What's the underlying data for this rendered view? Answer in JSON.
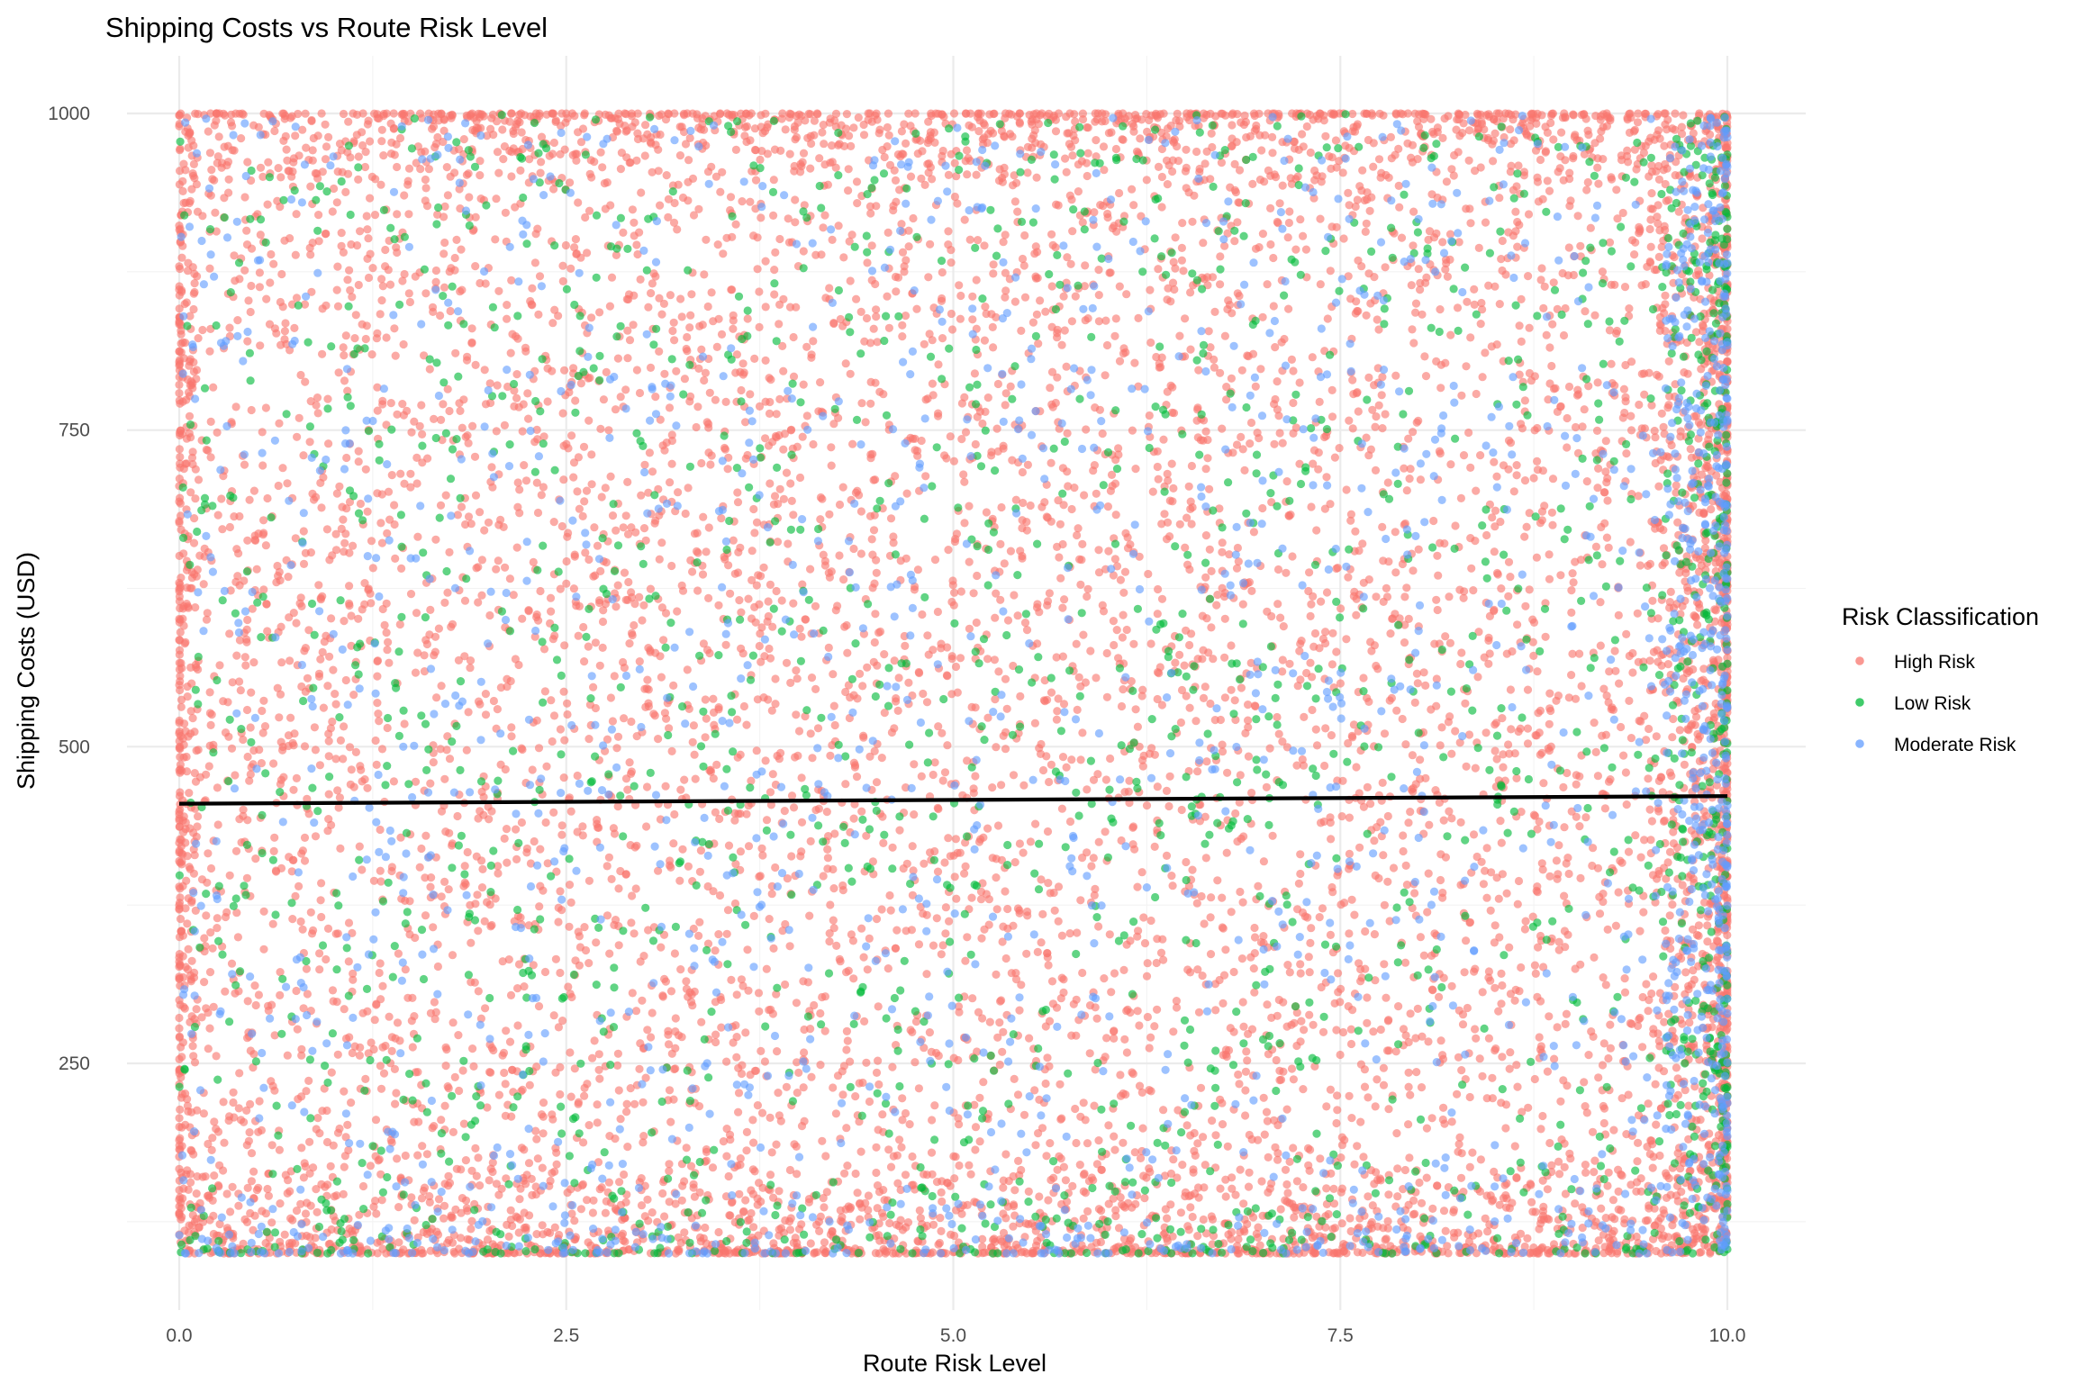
{
  "chart_data": {
    "type": "scatter",
    "title": "Shipping Costs vs Route Risk Level",
    "xlabel": "Route Risk Level",
    "ylabel": "Shipping Costs (USD)",
    "xlim": [
      0,
      10
    ],
    "ylim": [
      100,
      1000
    ],
    "x_ticks": [
      0,
      2.5,
      5,
      7.5,
      10
    ],
    "x_tick_labels": [
      "0.0",
      "2.5",
      "5.0",
      "7.5",
      "10.0"
    ],
    "y_ticks": [
      250,
      500,
      750,
      1000
    ],
    "y_tick_labels": [
      "250",
      "500",
      "750",
      "1000"
    ],
    "grid": true,
    "legend": {
      "title": "Risk Classification",
      "position": "right"
    },
    "series": [
      {
        "name": "High Risk",
        "color": "#F8766D",
        "share": 0.72,
        "distribution": "roughly uniform over x 0–10 and y 100–1000, dense bands near y=100, y=1000 and x=10"
      },
      {
        "name": "Low Risk",
        "color": "#00BA38",
        "share": 0.14,
        "distribution": "scattered over full range"
      },
      {
        "name": "Moderate Risk",
        "color": "#619CFF",
        "share": 0.14,
        "distribution": "scattered over full range, concentrated near x=10"
      }
    ],
    "trend_line": {
      "type": "linear",
      "color": "#000000",
      "x": [
        0,
        10
      ],
      "y": [
        455,
        461
      ]
    }
  }
}
